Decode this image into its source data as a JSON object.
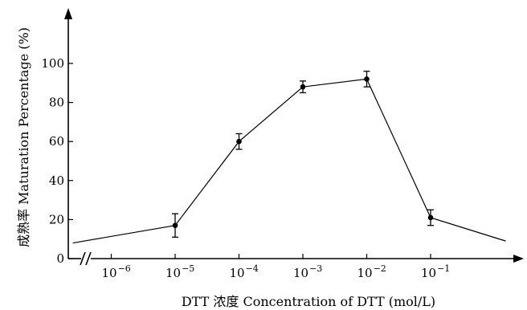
{
  "chart_data": {
    "type": "line",
    "xlabel": "DTT 浓度 Concentration of DTT (mol/L)",
    "ylabel": "成熟率 Maturation Percentage (%)",
    "x_scale": "log",
    "x_axis_break": true,
    "x_tick_labels": [
      {
        "value": 1e-06,
        "base": "10",
        "exponent": "−6"
      },
      {
        "value": 1e-05,
        "base": "10",
        "exponent": "−5"
      },
      {
        "value": 0.0001,
        "base": "10",
        "exponent": "−4"
      },
      {
        "value": 0.001,
        "base": "10",
        "exponent": "−3"
      },
      {
        "value": 0.01,
        "base": "10",
        "exponent": "−2"
      },
      {
        "value": 0.1,
        "base": "10",
        "exponent": "−1"
      }
    ],
    "y_ticks": [
      0,
      20,
      40,
      60,
      80,
      100
    ],
    "ylim": [
      0,
      100
    ],
    "grid": false,
    "legend": "none",
    "series": [
      {
        "line_points": [
          {
            "x": 2.5e-07,
            "y": 8
          },
          {
            "x": 1e-05,
            "y": 17
          },
          {
            "x": 0.0001,
            "y": 60
          },
          {
            "x": 0.001,
            "y": 88
          },
          {
            "x": 0.01,
            "y": 92
          },
          {
            "x": 0.1,
            "y": 21
          },
          {
            "x": 1.5,
            "y": 9
          }
        ],
        "points": [
          {
            "x": 1e-05,
            "y": 17,
            "err_low": 11,
            "err_high": 23
          },
          {
            "x": 0.0001,
            "y": 60,
            "err_low": 56,
            "err_high": 64
          },
          {
            "x": 0.001,
            "y": 88,
            "err_low": 85,
            "err_high": 91
          },
          {
            "x": 0.01,
            "y": 92,
            "err_low": 88,
            "err_high": 96
          },
          {
            "x": 0.1,
            "y": 21,
            "err_low": 17,
            "err_high": 25
          }
        ]
      }
    ],
    "colors": {
      "line": "#000000",
      "marker": "#000000",
      "axis": "#000000",
      "background": "#ffffff"
    }
  }
}
